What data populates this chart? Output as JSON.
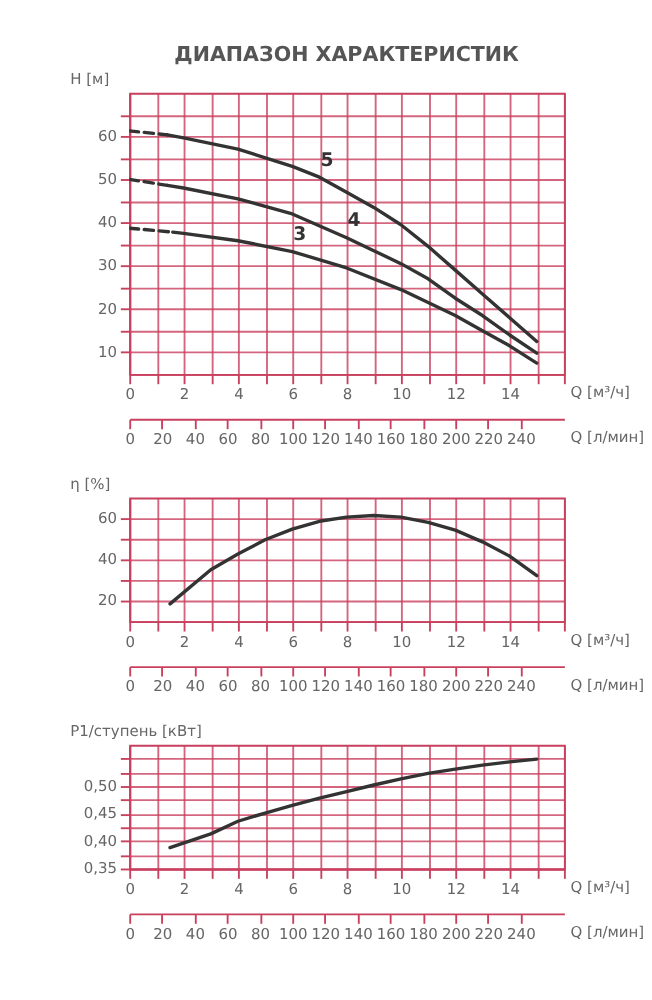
{
  "chart_data": [
    {
      "type": "line",
      "title": "ДИАПАЗОН ХАРАКТЕРИСТИК",
      "xlabel": "Q [м³/ч]",
      "ylabel": "H [м]",
      "x2label": "Q [л/мин]",
      "line_style": "solid",
      "grid": true,
      "xlim": [
        0,
        16
      ],
      "xticks": [
        0,
        {
          "value": 1,
          "label": null
        },
        2,
        {
          "value": 3,
          "label": null
        },
        4,
        {
          "value": 5,
          "label": null
        },
        6,
        {
          "value": 7,
          "label": null
        },
        8,
        {
          "value": 9,
          "label": null
        },
        10,
        {
          "value": 11,
          "label": null
        },
        12,
        {
          "value": 13,
          "label": null
        },
        14,
        {
          "value": 15,
          "label": null
        },
        {
          "value": 16,
          "label": null
        }
      ],
      "ylim": [
        5,
        70
      ],
      "yticks": [
        10,
        {
          "value": 15,
          "label": null
        },
        20,
        {
          "value": 25,
          "label": null
        },
        30,
        {
          "value": 35,
          "label": null
        },
        40,
        {
          "value": 45,
          "label": null
        },
        50,
        {
          "value": 55,
          "label": null
        },
        60,
        {
          "value": 65,
          "label": null
        }
      ],
      "x2lim": [
        0,
        266.7
      ],
      "x2ticks": [
        0,
        20,
        40,
        60,
        80,
        100,
        120,
        140,
        160,
        180,
        200,
        220,
        240
      ],
      "series": [
        {
          "color": "#333333",
          "line_style": "dashed",
          "x": [
            0,
            1.4
          ],
          "values": [
            61.2,
            60.3
          ]
        },
        {
          "name": "5",
          "color": "#333333",
          "x": [
            1.4,
            2,
            4,
            6,
            7,
            8,
            9,
            10,
            11,
            12,
            13,
            14,
            15
          ],
          "values": [
            60.3,
            59.6,
            57,
            53,
            50.5,
            47,
            43.5,
            39.5,
            34.5,
            29,
            23.5,
            18,
            12.5
          ]
        },
        {
          "color": "#333333",
          "line_style": "dashed",
          "x": [
            0,
            1.4
          ],
          "values": [
            50,
            48.6
          ]
        },
        {
          "name": "4",
          "color": "#333333",
          "x": [
            1.4,
            2,
            4,
            6,
            8,
            9,
            10,
            11,
            12,
            13,
            14,
            15
          ],
          "values": [
            48.6,
            48,
            45.5,
            42,
            36.5,
            33.5,
            30.5,
            27,
            22.5,
            18.5,
            14,
            9.8
          ]
        },
        {
          "color": "#333333",
          "line_style": "dashed",
          "x": [
            0,
            1.6
          ],
          "values": [
            38.7,
            37.8
          ]
        },
        {
          "name": "3",
          "color": "#333333",
          "x": [
            1.6,
            2,
            4,
            6,
            8,
            10,
            12,
            13,
            14,
            15
          ],
          "values": [
            37.8,
            37.5,
            35.8,
            33.3,
            29.5,
            24.5,
            18.5,
            15,
            11.5,
            7.5
          ]
        }
      ]
    },
    {
      "type": "line",
      "xlabel": "Q [м³/ч]",
      "ylabel": "η [%]",
      "x2label": "Q [л/мин]",
      "line_style": "solid",
      "grid": true,
      "xlim": [
        0,
        16
      ],
      "xticks": [
        0,
        {
          "value": 1,
          "label": null
        },
        2,
        {
          "value": 3,
          "label": null
        },
        4,
        {
          "value": 5,
          "label": null
        },
        6,
        {
          "value": 7,
          "label": null
        },
        8,
        {
          "value": 9,
          "label": null
        },
        10,
        {
          "value": 11,
          "label": null
        },
        12,
        {
          "value": 13,
          "label": null
        },
        14,
        {
          "value": 15,
          "label": null
        },
        {
          "value": 16,
          "label": null
        }
      ],
      "ylim": [
        10,
        70
      ],
      "yticks": [
        20,
        {
          "value": 30,
          "label": null
        },
        40,
        {
          "value": 50,
          "label": null
        },
        60
      ],
      "x2lim": [
        0,
        266.7
      ],
      "x2ticks": [
        0,
        20,
        40,
        60,
        80,
        100,
        120,
        140,
        160,
        180,
        200,
        220,
        240
      ],
      "series": [
        {
          "color": "#333333",
          "x": [
            1.5,
            3,
            4,
            5,
            6,
            7,
            8,
            9,
            10,
            11,
            12,
            13,
            14,
            15
          ],
          "values": [
            18.4,
            35,
            42.6,
            49.5,
            54.7,
            58.5,
            60.5,
            61.3,
            60.5,
            58,
            54.2,
            48.5,
            41.6,
            32.1
          ]
        }
      ]
    },
    {
      "type": "line",
      "xlabel": "Q [м³/ч]",
      "ylabel": "P1/ступень [кВт]",
      "x2label": "Q [л/мин]",
      "line_style": "solid",
      "grid": true,
      "xlim": [
        0,
        16
      ],
      "xticks": [
        0,
        {
          "value": 1,
          "label": null
        },
        2,
        {
          "value": 3,
          "label": null
        },
        4,
        {
          "value": 5,
          "label": null
        },
        6,
        {
          "value": 7,
          "label": null
        },
        8,
        {
          "value": 9,
          "label": null
        },
        10,
        {
          "value": 11,
          "label": null
        },
        12,
        {
          "value": 13,
          "label": null
        },
        14,
        {
          "value": 15,
          "label": null
        },
        {
          "value": 16,
          "label": null
        }
      ],
      "ylim": [
        0.35,
        0.575
      ],
      "yticks": [
        {
          "value": 0.35,
          "label": "0,35"
        },
        {
          "value": 0.375,
          "label": null
        },
        {
          "value": 0.4,
          "label": "0,40"
        },
        {
          "value": 0.425,
          "label": null
        },
        {
          "value": 0.45,
          "label": "0,45"
        },
        {
          "value": 0.475,
          "label": null
        },
        {
          "value": 0.5,
          "label": "0,50"
        },
        {
          "value": 0.525,
          "label": null
        },
        {
          "value": 0.55,
          "label": null
        }
      ],
      "x2lim": [
        0,
        266.7
      ],
      "x2ticks": [
        0,
        20,
        40,
        60,
        80,
        100,
        120,
        140,
        160,
        180,
        200,
        220,
        240
      ],
      "series": [
        {
          "color": "#333333",
          "x": [
            1.5,
            3,
            4,
            5,
            6,
            7,
            8,
            9,
            10,
            11,
            12,
            13,
            14,
            15
          ],
          "values": [
            0.388,
            0.413,
            0.436,
            0.451,
            0.465,
            0.478,
            0.49,
            0.502,
            0.513,
            0.523,
            0.531,
            0.538,
            0.544,
            0.549
          ]
        }
      ]
    }
  ]
}
